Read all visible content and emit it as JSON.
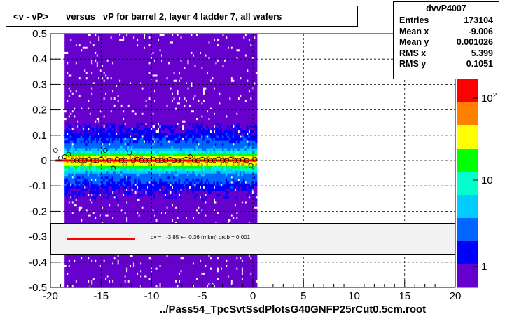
{
  "title": "<v - vP>       versus   vP for barrel 2, layer 4 ladder 7, all wafers",
  "stats": {
    "name": "dvvP4007",
    "rows": [
      {
        "key": "Entries",
        "value": "173104"
      },
      {
        "key": "Mean x",
        "value": "-9.006"
      },
      {
        "key": "Mean y",
        "value": "0.001026"
      },
      {
        "key": "RMS x",
        "value": "5.399"
      },
      {
        "key": "RMS y",
        "value": "0.1051"
      }
    ]
  },
  "fit_text": "dv =   -3.85 +-  0.36 (mkm) prob = 0.001",
  "xlabel": "../Pass54_TpcSvtSsdPlotsG40GNFP25rCut0.5cm.root",
  "colors": {
    "fit_line": "#ff0000",
    "palette": [
      "#ff0000",
      "#ff8000",
      "#ffff00",
      "#00ff00",
      "#00ffcc",
      "#00ccff",
      "#0066ff",
      "#0000ff",
      "#6600cc"
    ]
  },
  "chart_data": {
    "type": "heatmap",
    "xlim": [
      -20,
      20
    ],
    "ylim": [
      -0.5,
      0.5
    ],
    "x_ticks": [
      "-20",
      "-15",
      "-10",
      "-5",
      "0",
      "5",
      "10",
      "15",
      "20"
    ],
    "y_ticks": [
      "-0.5",
      "-0.4",
      "-0.3",
      "-0.2",
      "-0.1",
      "0",
      "0.1",
      "0.2",
      "0.3",
      "0.4",
      "0.5"
    ],
    "z_scale": "log",
    "z_ticks": [
      "1",
      "10",
      "10^2"
    ],
    "grid": true,
    "data_x_range": [
      -18.6,
      0.4
    ],
    "profile_points": {
      "x": [
        -19.5,
        -19.0,
        -18.6,
        -18.2,
        -17.8,
        -17.4,
        -17.0,
        -16.6,
        -16.2,
        -15.8,
        -15.4,
        -15.0,
        -14.6,
        -14.2,
        -13.8,
        -13.4,
        -13.0,
        -12.6,
        -12.2,
        -11.8,
        -11.4,
        -11.0,
        -10.6,
        -10.2,
        -9.8,
        -9.4,
        -9.0,
        -8.6,
        -8.2,
        -7.8,
        -7.4,
        -7.0,
        -6.6,
        -6.2,
        -5.8,
        -5.4,
        -5.0,
        -4.6,
        -4.2,
        -3.8,
        -3.4,
        -3.0,
        -2.6,
        -2.2,
        -1.8,
        -1.4,
        -1.0,
        -0.6,
        -0.2,
        0.2
      ],
      "y": [
        0.04,
        0.01,
        0.015,
        0.025,
        0.0,
        0.0,
        0.0,
        0.0,
        0.005,
        0.0,
        0.0,
        0.005,
        0.04,
        0.0,
        -0.03,
        0.005,
        0.0,
        0.0,
        0.03,
        0.0,
        0.005,
        0.0,
        0.0,
        0.0,
        0.005,
        0.0,
        0.0,
        0.0,
        0.005,
        0.0,
        0.0,
        0.0,
        0.005,
        0.015,
        0.0,
        0.0,
        0.005,
        0.0,
        0.0,
        0.0,
        0.005,
        0.0,
        0.0,
        0.005,
        0.0,
        0.0,
        0.005,
        0.0,
        -0.02,
        0.005
      ]
    },
    "fit_line": {
      "x": [
        -19.5,
        0.4
      ],
      "y": [
        0.0,
        0.0
      ]
    }
  }
}
